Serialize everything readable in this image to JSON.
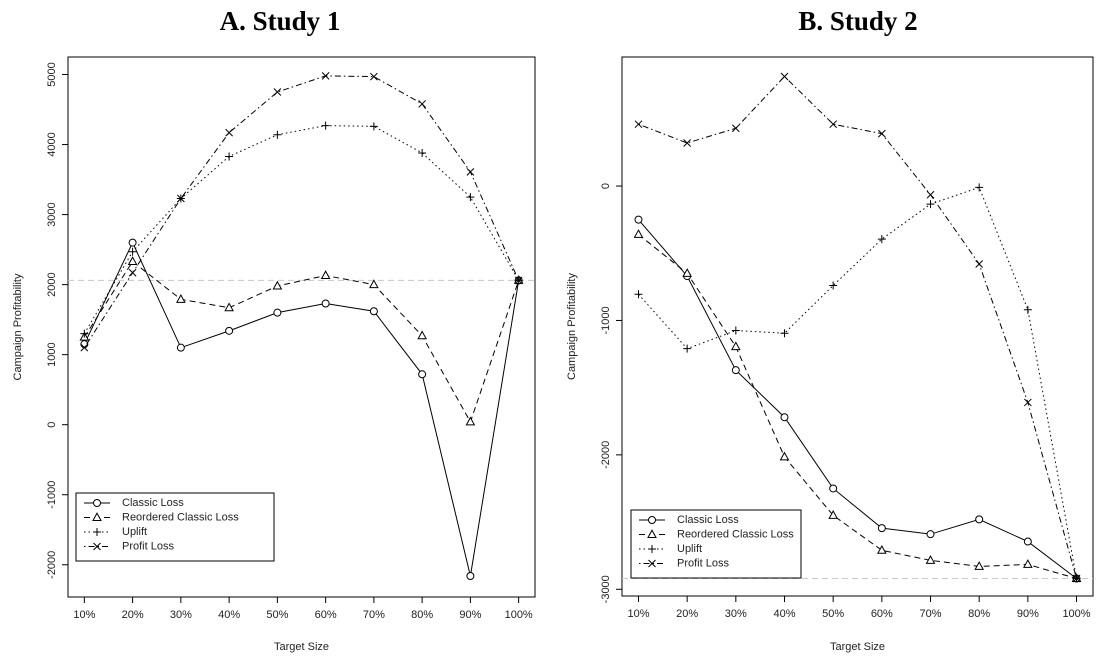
{
  "chart_data": [
    {
      "type": "line",
      "title": "A. Study 1",
      "x_label": "Target Size",
      "y_label": "Campaign Profitability",
      "categories": [
        "10%",
        "20%",
        "30%",
        "40%",
        "50%",
        "60%",
        "70%",
        "80%",
        "90%",
        "100%"
      ],
      "ylim": [
        -2460,
        5250
      ],
      "yticks": [
        -2000,
        -1000,
        0,
        1000,
        2000,
        3000,
        4000,
        5000
      ],
      "hline": 2060,
      "legend": "bottom-left",
      "series": [
        {
          "name": "Classic Loss",
          "color": "#000000",
          "marker": "circle",
          "line_style": "solid",
          "values": [
            1150,
            2600,
            1100,
            1340,
            1600,
            1730,
            1620,
            720,
            -2160,
            2060
          ]
        },
        {
          "name": "Reordered Classic Loss",
          "color": "#000000",
          "marker": "triangle",
          "line_style": "dashed",
          "values": [
            1250,
            2330,
            1790,
            1670,
            1980,
            2130,
            2000,
            1270,
            40,
            2060
          ]
        },
        {
          "name": "Uplift",
          "color": "#000000",
          "marker": "plus",
          "line_style": "dotted",
          "values": [
            1300,
            2470,
            3230,
            3830,
            4140,
            4270,
            4260,
            3880,
            3250,
            2060
          ]
        },
        {
          "name": "Profit Loss",
          "color": "#000000",
          "marker": "cross",
          "line_style": "dotdash",
          "values": [
            1100,
            2170,
            3230,
            4170,
            4750,
            4980,
            4970,
            4580,
            3610,
            2060
          ]
        }
      ]
    },
    {
      "type": "line",
      "title": "B. Study 2",
      "x_label": "Target Size",
      "y_label": "Campaign Profitability",
      "categories": [
        "10%",
        "20%",
        "30%",
        "40%",
        "50%",
        "60%",
        "70%",
        "80%",
        "90%",
        "100%"
      ],
      "ylim": [
        -3050,
        960
      ],
      "yticks": [
        -3000,
        -2000,
        -1000,
        0
      ],
      "hline": -2920,
      "legend": "bottom-left",
      "series": [
        {
          "name": "Classic Loss",
          "color": "#000000",
          "marker": "circle",
          "line_style": "solid",
          "values": [
            -250,
            -670,
            -1370,
            -1720,
            -2250,
            -2545,
            -2590,
            -2480,
            -2645,
            -2920
          ]
        },
        {
          "name": "Reordered Classic Loss",
          "color": "#000000",
          "marker": "triangle",
          "line_style": "dashed",
          "values": [
            -360,
            -650,
            -1195,
            -2015,
            -2450,
            -2710,
            -2785,
            -2830,
            -2815,
            -2920
          ]
        },
        {
          "name": "Uplift",
          "color": "#000000",
          "marker": "plus",
          "line_style": "dotted",
          "values": [
            -805,
            -1210,
            -1075,
            -1095,
            -740,
            -395,
            -135,
            -10,
            -920,
            -2920
          ]
        },
        {
          "name": "Profit Loss",
          "color": "#000000",
          "marker": "cross",
          "line_style": "dotdash",
          "values": [
            460,
            320,
            430,
            815,
            460,
            390,
            -65,
            -580,
            -1610,
            -2920
          ]
        }
      ]
    }
  ]
}
